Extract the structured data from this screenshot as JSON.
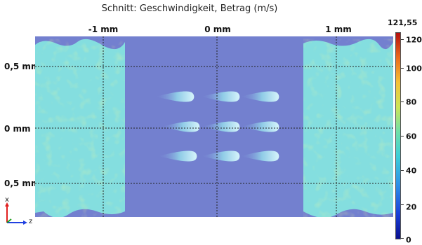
{
  "title": "Schnitt: Geschwindigkeit, Betrag (m/s)",
  "x_ticks": [
    "-1 mm",
    "0 mm",
    "1 mm"
  ],
  "y_ticks": [
    "0,5 mm",
    "0 mm",
    "0,5 mm"
  ],
  "colorbar": {
    "max_label": "121,55",
    "ticks": [
      "120",
      "100",
      "80",
      "60",
      "40",
      "20",
      "0"
    ]
  },
  "axes_triad": {
    "vertical": "x",
    "horizontal": "z"
  },
  "colors": {
    "channel": "#7380cf",
    "flow_field": "#82dcdf",
    "grid": "#222222",
    "axis_x": "#e02020",
    "axis_y": "#20a020",
    "axis_z": "#2040e0"
  }
}
